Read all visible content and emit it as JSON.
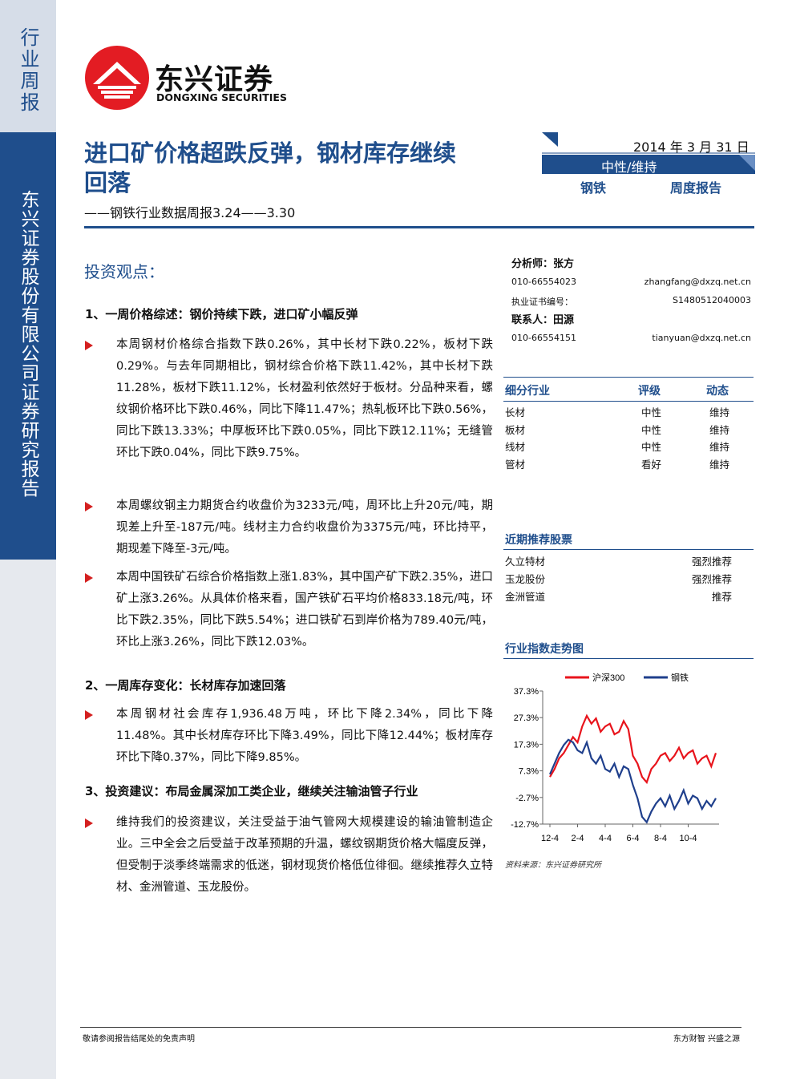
{
  "sidebar": {
    "top": "行业周报",
    "main": "东兴证券股份有限公司证券研究报告"
  },
  "logo": {
    "cn": "东兴证券",
    "en": "DONGXING SECURITIES"
  },
  "header": {
    "title_line1": "进口矿价格超跌反弹，钢材库存继续",
    "title_line2": "回落",
    "subtitle": "——钢铁行业数据周报3.24——3.30",
    "date": "2014 年 3 月 31 日",
    "rating": "中性/维持",
    "industry": "钢铁",
    "report_type": "周度报告"
  },
  "body": {
    "heading": "投资观点：",
    "sections": [
      {
        "title": "1、一周价格综述：钢价持续下跌，进口矿小幅反弹",
        "bullets": [
          "本周钢材价格综合指数下跌0.26%，其中长材下跌0.22%，板材下跌0.29%。与去年同期相比，钢材综合价格下跌11.42%，其中长材下跌11.28%，板材下跌11.12%，长材盈利依然好于板材。分品种来看，螺纹钢价格环比下跌0.46%，同比下降11.47%；热轧板环比下跌0.56%，同比下跌13.33%；中厚板环比下跌0.05%，同比下跌12.11%；无缝管环比下跌0.04%，同比下跌9.75%。",
          "本周螺纹钢主力期货合约收盘价为3233元/吨，周环比上升20元/吨，期现差上升至-187元/吨。线材主力合约收盘价为3375元/吨，环比持平，期现差下降至-3元/吨。",
          "本周中国铁矿石综合价格指数上涨1.83%，其中国产矿下跌2.35%，进口矿上涨3.26%。从具体价格来看，国产铁矿石平均价格833.18元/吨，环比下跌2.35%，同比下跌5.54%；进口铁矿石到岸价格为789.40元/吨，环比上涨3.26%，同比下跌12.03%。"
        ]
      },
      {
        "title": "2、一周库存变化：长材库存加速回落",
        "bullets": [
          "本周钢材社会库存1,936.48万吨，环比下降2.34%，同比下降11.48%。其中长材库存环比下降3.49%，同比下降12.44%；板材库存环比下降0.37%，同比下降9.85%。"
        ]
      },
      {
        "title": "3、投资建议：布局金属深加工类企业，继续关注输油管子行业",
        "bullets": [
          "维持我们的投资建议，关注受益于油气管网大规模建设的输油管制造企业。三中全会之后受益于改革预期的升温，螺纹钢期货价格大幅度反弹，但受制于淡季终端需求的低迷，钢材现货价格低位徘徊。继续推荐久立特材、金洲管道、玉龙股份。"
        ]
      }
    ]
  },
  "analysts": {
    "analyst": "分析师：张方",
    "analyst_phone": "010-66554023",
    "analyst_email": "zhangfang@dxzq.net.cn",
    "cert_label": "执业证书编号：",
    "cert": "S1480512040003",
    "contact": "联系人：田源",
    "contact_phone": "010-66554151",
    "contact_email": "tianyuan@dxzq.net.cn"
  },
  "rating_table": {
    "header": [
      "细分行业",
      "评级",
      "动态"
    ],
    "rows": [
      [
        "长材",
        "中性",
        "维持"
      ],
      [
        "板材",
        "中性",
        "维持"
      ],
      [
        "线材",
        "中性",
        "维持"
      ],
      [
        "管材",
        "看好",
        "维持"
      ]
    ]
  },
  "stocks": {
    "title": "近期推荐股票",
    "rows": [
      [
        "久立特材",
        "强烈推荐"
      ],
      [
        "玉龙股份",
        "强烈推荐"
      ],
      [
        "金洲管道",
        "推荐"
      ]
    ]
  },
  "chart_data": {
    "type": "line",
    "title": "行业指数走势图",
    "source": "资料来源：东兴证券研究所",
    "categories": [
      "12-4",
      null,
      null,
      null,
      null,
      null,
      "2-4",
      null,
      null,
      null,
      null,
      null,
      "4-4",
      null,
      null,
      null,
      null,
      null,
      "6-4",
      null,
      null,
      null,
      null,
      null,
      "8-4",
      null,
      null,
      null,
      null,
      null,
      "10-4",
      null,
      null,
      null,
      null,
      null,
      null
    ],
    "series": [
      {
        "name": "沪深300",
        "color": "#e8141c",
        "values": [
          5,
          8,
          12,
          14,
          17,
          20,
          18,
          24,
          28,
          25,
          27,
          22,
          24,
          25,
          21,
          22,
          26,
          23,
          13,
          10,
          5,
          3,
          8,
          10,
          13,
          14,
          11,
          13,
          16,
          12,
          14,
          15,
          10,
          12,
          13,
          9,
          14
        ]
      },
      {
        "name": "钢铁",
        "color": "#1f3f8c",
        "values": [
          6,
          10,
          14,
          17,
          19,
          18,
          15,
          14,
          18,
          12,
          10,
          13,
          8,
          7,
          10,
          5,
          9,
          8,
          2,
          -3,
          -10,
          -12,
          -8,
          -5,
          -3,
          -6,
          -2,
          -7,
          -4,
          0,
          -5,
          -2,
          -3,
          -7,
          -4,
          -6,
          -3
        ]
      }
    ],
    "ylim": [
      -12.7,
      37.3
    ],
    "yticks": [
      {
        "value": -12.7,
        "label": "-12.7%"
      },
      {
        "value": -2.7,
        "label": "-2.7%"
      },
      {
        "value": 7.3,
        "label": "7.3%"
      },
      {
        "value": 17.3,
        "label": "17.3%"
      },
      {
        "value": 27.3,
        "label": "27.3%"
      },
      {
        "value": 37.3,
        "label": "37.3%"
      }
    ]
  },
  "footer": {
    "left": "敬请参阅报告结尾处的免责声明",
    "right": "东方财智 兴盛之源"
  }
}
